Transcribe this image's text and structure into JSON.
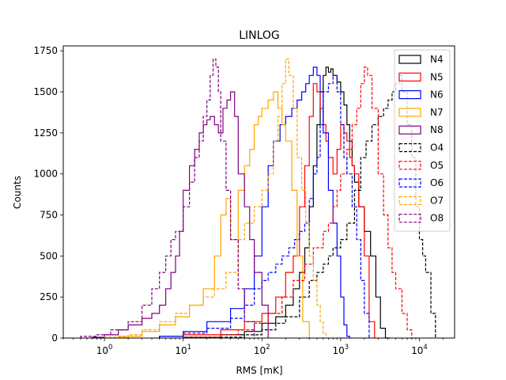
{
  "chart_data": {
    "type": "line",
    "subtype": "step-histogram",
    "title": "LINLOG",
    "xlabel": "RMS [mK]",
    "ylabel": "Counts",
    "xscale": "log",
    "xlim": [
      0.3,
      28000
    ],
    "ylim": [
      0,
      1780
    ],
    "xticks": [
      {
        "value": 1,
        "base": "10",
        "exp": "0"
      },
      {
        "value": 10,
        "base": "10",
        "exp": "1"
      },
      {
        "value": 100,
        "base": "10",
        "exp": "2"
      },
      {
        "value": 1000,
        "base": "10",
        "exp": "3"
      },
      {
        "value": 10000,
        "base": "10",
        "exp": "4"
      }
    ],
    "yticks": [
      {
        "value": 0,
        "label": "0"
      },
      {
        "value": 250,
        "label": "250"
      },
      {
        "value": 500,
        "label": "500"
      },
      {
        "value": 750,
        "label": "750"
      },
      {
        "value": 1000,
        "label": "1000"
      },
      {
        "value": 1250,
        "label": "1250"
      },
      {
        "value": 1500,
        "label": "1500"
      },
      {
        "value": 1750,
        "label": "1750"
      }
    ],
    "grid": false,
    "legend_position": "top-right",
    "series": [
      {
        "name": "N4",
        "color": "#000000",
        "dash": "solid",
        "x": [
          10,
          30,
          60,
          100,
          150,
          200,
          250,
          300,
          350,
          400,
          450,
          500,
          550,
          600,
          650,
          700,
          750,
          800,
          900,
          1000,
          1100,
          1200,
          1300,
          1400,
          1500,
          1700,
          2000,
          2400,
          2800,
          3200,
          3700,
          4200
        ],
        "y": [
          5,
          20,
          40,
          90,
          130,
          200,
          300,
          400,
          550,
          800,
          1050,
          1300,
          1500,
          1600,
          1650,
          1620,
          1640,
          1600,
          1560,
          1500,
          1420,
          1300,
          1200,
          1050,
          950,
          800,
          650,
          500,
          250,
          60,
          0,
          0
        ]
      },
      {
        "name": "N5",
        "color": "#ff0000",
        "dash": "solid",
        "x": [
          10,
          30,
          60,
          100,
          150,
          200,
          250,
          300,
          350,
          400,
          450,
          500,
          550,
          600,
          650,
          700,
          800,
          900,
          1000,
          1100,
          1200,
          1300,
          1400,
          1500,
          1700,
          2000,
          2300,
          2700
        ],
        "y": [
          20,
          50,
          100,
          150,
          250,
          400,
          500,
          800,
          1050,
          1350,
          1550,
          1500,
          1400,
          1300,
          1200,
          1100,
          1000,
          1150,
          1300,
          1250,
          1200,
          1100,
          1050,
          1000,
          800,
          500,
          100,
          0
        ]
      },
      {
        "name": "N6",
        "color": "#0000ff",
        "dash": "solid",
        "x": [
          5,
          10,
          20,
          40,
          60,
          80,
          100,
          120,
          140,
          170,
          200,
          240,
          280,
          320,
          360,
          400,
          450,
          500,
          550,
          600,
          700,
          800,
          900,
          1000,
          1100,
          1200,
          1300
        ],
        "y": [
          10,
          40,
          100,
          180,
          300,
          500,
          800,
          1050,
          1200,
          1300,
          1350,
          1400,
          1450,
          1500,
          1550,
          1600,
          1650,
          1600,
          1500,
          1250,
          900,
          700,
          500,
          250,
          80,
          10,
          0
        ]
      },
      {
        "name": "N7",
        "color": "#ffa500",
        "dash": "solid",
        "x": [
          1.5,
          3,
          5,
          8,
          12,
          18,
          25,
          30,
          35,
          40,
          50,
          60,
          70,
          80,
          90,
          100,
          120,
          140,
          160,
          180,
          200,
          240,
          280,
          330,
          400
        ],
        "y": [
          10,
          40,
          80,
          130,
          200,
          300,
          500,
          750,
          850,
          600,
          900,
          1050,
          1150,
          1300,
          1350,
          1400,
          1450,
          1500,
          1400,
          1300,
          1200,
          900,
          500,
          100,
          0
        ]
      },
      {
        "name": "N8",
        "color": "#800080",
        "dash": "solid",
        "x": [
          0.7,
          1,
          1.5,
          2,
          3,
          4,
          5,
          6,
          7,
          8,
          9,
          10,
          12,
          14,
          16,
          18,
          20,
          22,
          25,
          28,
          32,
          36,
          40,
          45,
          50,
          60,
          70,
          80,
          100,
          120
        ],
        "y": [
          5,
          20,
          50,
          80,
          120,
          150,
          200,
          300,
          400,
          500,
          650,
          900,
          1050,
          1150,
          1250,
          1300,
          1330,
          1350,
          1300,
          1250,
          1400,
          1450,
          1500,
          1350,
          1000,
          800,
          600,
          400,
          200,
          0
        ]
      },
      {
        "name": "O4",
        "color": "#000000",
        "dash": "dashed",
        "x": [
          30,
          60,
          100,
          150,
          200,
          300,
          400,
          500,
          600,
          700,
          800,
          1000,
          1200,
          1500,
          1800,
          2100,
          2500,
          3000,
          3500,
          4000,
          4500,
          5000,
          5500,
          6000,
          7000,
          8000,
          9000,
          10000,
          11000,
          12000,
          14000,
          16000
        ],
        "y": [
          5,
          20,
          50,
          90,
          130,
          250,
          350,
          400,
          450,
          500,
          550,
          600,
          700,
          900,
          1100,
          1200,
          1300,
          1350,
          1400,
          1450,
          1500,
          1550,
          1600,
          1500,
          1300,
          1100,
          800,
          600,
          500,
          400,
          150,
          0
        ]
      },
      {
        "name": "O5",
        "color": "#ff0000",
        "dash": "dashed",
        "x": [
          10,
          30,
          50,
          80,
          120,
          180,
          250,
          350,
          450,
          600,
          700,
          800,
          900,
          1000,
          1200,
          1400,
          1600,
          1800,
          2000,
          2200,
          2500,
          3000,
          3500,
          4000,
          4500,
          5000,
          6000,
          7000,
          8000
        ],
        "y": [
          5,
          20,
          50,
          90,
          150,
          250,
          350,
          450,
          550,
          650,
          700,
          800,
          900,
          1000,
          1150,
          1300,
          1400,
          1550,
          1650,
          1600,
          1400,
          1000,
          750,
          550,
          400,
          300,
          150,
          50,
          0
        ]
      },
      {
        "name": "O6",
        "color": "#0000ff",
        "dash": "dashed",
        "x": [
          5,
          10,
          20,
          40,
          60,
          80,
          100,
          120,
          150,
          180,
          220,
          260,
          300,
          350,
          400,
          450,
          500,
          550,
          600,
          700,
          800,
          900,
          1000,
          1100,
          1200,
          1400,
          1600,
          1800,
          2000,
          2300
        ],
        "y": [
          10,
          30,
          60,
          120,
          200,
          300,
          350,
          400,
          450,
          500,
          550,
          600,
          650,
          700,
          850,
          1000,
          1100,
          1300,
          1500,
          1550,
          1600,
          1500,
          1300,
          1100,
          1000,
          800,
          600,
          350,
          150,
          0
        ]
      },
      {
        "name": "O7",
        "color": "#ffa500",
        "dash": "dashed",
        "x": [
          1,
          2,
          3,
          5,
          8,
          12,
          18,
          25,
          35,
          50,
          60,
          80,
          100,
          120,
          140,
          160,
          180,
          200,
          220,
          250,
          280,
          320,
          360,
          400,
          450,
          500,
          550,
          600,
          650
        ],
        "y": [
          5,
          20,
          50,
          100,
          150,
          200,
          250,
          300,
          400,
          600,
          700,
          800,
          900,
          1000,
          1200,
          1350,
          1550,
          1700,
          1600,
          1400,
          1100,
          900,
          700,
          500,
          350,
          200,
          100,
          30,
          0
        ]
      },
      {
        "name": "O8",
        "color": "#800080",
        "dash": "dashed",
        "x": [
          0.5,
          0.8,
          1.2,
          2,
          3,
          4,
          5,
          6,
          7,
          8,
          10,
          12,
          14,
          16,
          18,
          20,
          22,
          24,
          26,
          28,
          30,
          35,
          40,
          50,
          60,
          80
        ],
        "y": [
          10,
          20,
          50,
          100,
          200,
          300,
          400,
          500,
          600,
          650,
          800,
          950,
          1100,
          1200,
          1350,
          1450,
          1600,
          1700,
          1650,
          1500,
          1200,
          900,
          600,
          300,
          100,
          0
        ]
      }
    ]
  }
}
